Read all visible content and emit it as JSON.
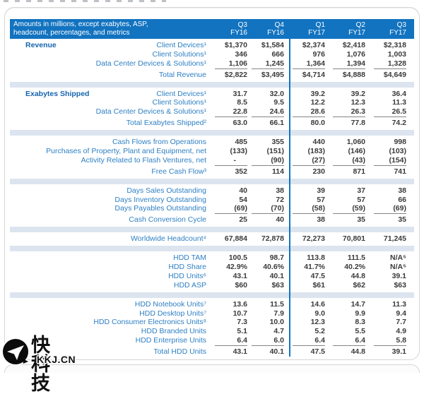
{
  "theme": {
    "header_bg": "#1273c0",
    "band_bg": "#dce4ef",
    "label_color": "#2e80c4",
    "section_color": "#1565ae",
    "value_color": "#3a3a3a",
    "divider_color": "#1273c0",
    "panel_border": "#d5d5d5",
    "rule_color": "#858585",
    "watermark_text": "#111111"
  },
  "watermark": {
    "icon": "kkj-logo-icon",
    "line1": "快科技",
    "line2": "KKJ.CN"
  },
  "table": {
    "header": {
      "caption_line1": "Amounts in millions, except exabytes, ASP,",
      "caption_line2": "headcount, percentages, and metrics",
      "columns": [
        {
          "q": "Q3",
          "fy": "FY16"
        },
        {
          "q": "Q4",
          "fy": "FY16"
        },
        {
          "q": "Q1",
          "fy": "FY17"
        },
        {
          "q": "Q2",
          "fy": "FY17"
        },
        {
          "q": "Q3",
          "fy": "FY17"
        }
      ]
    },
    "sections": [
      {
        "title": "Revenue",
        "rows": [
          {
            "label": "Client Devices¹",
            "values": [
              "$1,370",
              "$1,584",
              "$2,374",
              "$2,418",
              "$2,318"
            ]
          },
          {
            "label": "Client Solutions¹",
            "values": [
              "346",
              "666",
              "976",
              "1,076",
              "1,003"
            ]
          },
          {
            "label": "Data Center Devices & Solutions¹",
            "values": [
              "1,106",
              "1,245",
              "1,364",
              "1,394",
              "1,328"
            ],
            "rule": true
          },
          {
            "label": "Total Revenue",
            "values": [
              "$2,822",
              "$3,495",
              "$4,714",
              "$4,888",
              "$4,649"
            ],
            "gap": true
          }
        ]
      },
      {
        "title": "Exabytes Shipped",
        "rows": [
          {
            "label": "Client Devices¹",
            "values": [
              "31.7",
              "32.0",
              "39.2",
              "39.2",
              "36.4"
            ]
          },
          {
            "label": "Client Solutions¹",
            "values": [
              "8.5",
              "9.5",
              "12.2",
              "12.3",
              "11.3"
            ]
          },
          {
            "label": "Data Center Devices & Solutions¹",
            "values": [
              "22.8",
              "24.6",
              "28.6",
              "26.3",
              "26.5"
            ],
            "rule": true
          },
          {
            "label": "Total Exabytes Shipped²",
            "values": [
              "63.0",
              "66.1",
              "80.0",
              "77.8",
              "74.2"
            ],
            "gap": true
          }
        ]
      },
      {
        "title": "",
        "rows": [
          {
            "label": "Cash Flows from Operations",
            "values": [
              "485",
              "355",
              "440",
              "1,060",
              "998"
            ]
          },
          {
            "label": "Purchases of Property, Plant and Equipment, net",
            "values": [
              "(133)",
              "(151)",
              "(183)",
              "(146)",
              "(103)"
            ]
          },
          {
            "label": "Activity Related to Flash Ventures, net",
            "values": [
              "-",
              "(90)",
              "(27)",
              "(43)",
              "(154)"
            ],
            "rule": true
          },
          {
            "label": "Free Cash Flow³",
            "values": [
              "352",
              "114",
              "230",
              "871",
              "741"
            ],
            "gap": true
          }
        ]
      },
      {
        "title": "",
        "rows": [
          {
            "label": "Days Sales Outstanding",
            "values": [
              "40",
              "38",
              "39",
              "37",
              "38"
            ]
          },
          {
            "label": "Days Inventory Outstanding",
            "values": [
              "54",
              "72",
              "57",
              "57",
              "66"
            ]
          },
          {
            "label": "Days Payables Outstanding",
            "values": [
              "(69)",
              "(70)",
              "(58)",
              "(59)",
              "(69)"
            ],
            "rule": true
          },
          {
            "label": "Cash Conversion Cycle",
            "values": [
              "25",
              "40",
              "38",
              "35",
              "35"
            ],
            "gap": true
          }
        ]
      },
      {
        "title": "",
        "rows": [
          {
            "label": "Worldwide Headcount⁴",
            "values": [
              "67,884",
              "72,878",
              "72,273",
              "70,801",
              "71,245"
            ]
          }
        ]
      },
      {
        "title": "",
        "rows": [
          {
            "label": "HDD TAM",
            "values": [
              "100.5",
              "98.7",
              "113.8",
              "111.5",
              "N/A⁵"
            ]
          },
          {
            "label": "HDD Share",
            "values": [
              "42.9%",
              "40.6%",
              "41.7%",
              "40.2%",
              "N/A⁵"
            ]
          },
          {
            "label": "HDD Units⁶",
            "values": [
              "43.1",
              "40.1",
              "47.5",
              "44.8",
              "39.1"
            ]
          },
          {
            "label": "HDD ASP",
            "values": [
              "$60",
              "$63",
              "$61",
              "$62",
              "$63"
            ]
          }
        ]
      },
      {
        "title": "",
        "rows": [
          {
            "label": "HDD Notebook Units⁷",
            "values": [
              "13.6",
              "11.5",
              "14.6",
              "14.7",
              "11.3"
            ]
          },
          {
            "label": "HDD Desktop Units⁷",
            "values": [
              "10.7",
              "7.9",
              "9.0",
              "9.9",
              "9.4"
            ]
          },
          {
            "label": "HDD Consumer Electronics Units⁸",
            "values": [
              "7.3",
              "10.0",
              "12.3",
              "8.3",
              "7.7"
            ]
          },
          {
            "label": "HDD Branded Units",
            "values": [
              "5.1",
              "4.7",
              "5.2",
              "5.5",
              "4.9"
            ]
          },
          {
            "label": "HDD Enterprise Units",
            "values": [
              "6.4",
              "6.0",
              "6.4",
              "6.4",
              "5.8"
            ],
            "rule": true
          },
          {
            "label": "Total HDD Units",
            "values": [
              "43.1",
              "40.1",
              "47.5",
              "44.8",
              "39.1"
            ],
            "gap": true
          }
        ]
      }
    ]
  }
}
